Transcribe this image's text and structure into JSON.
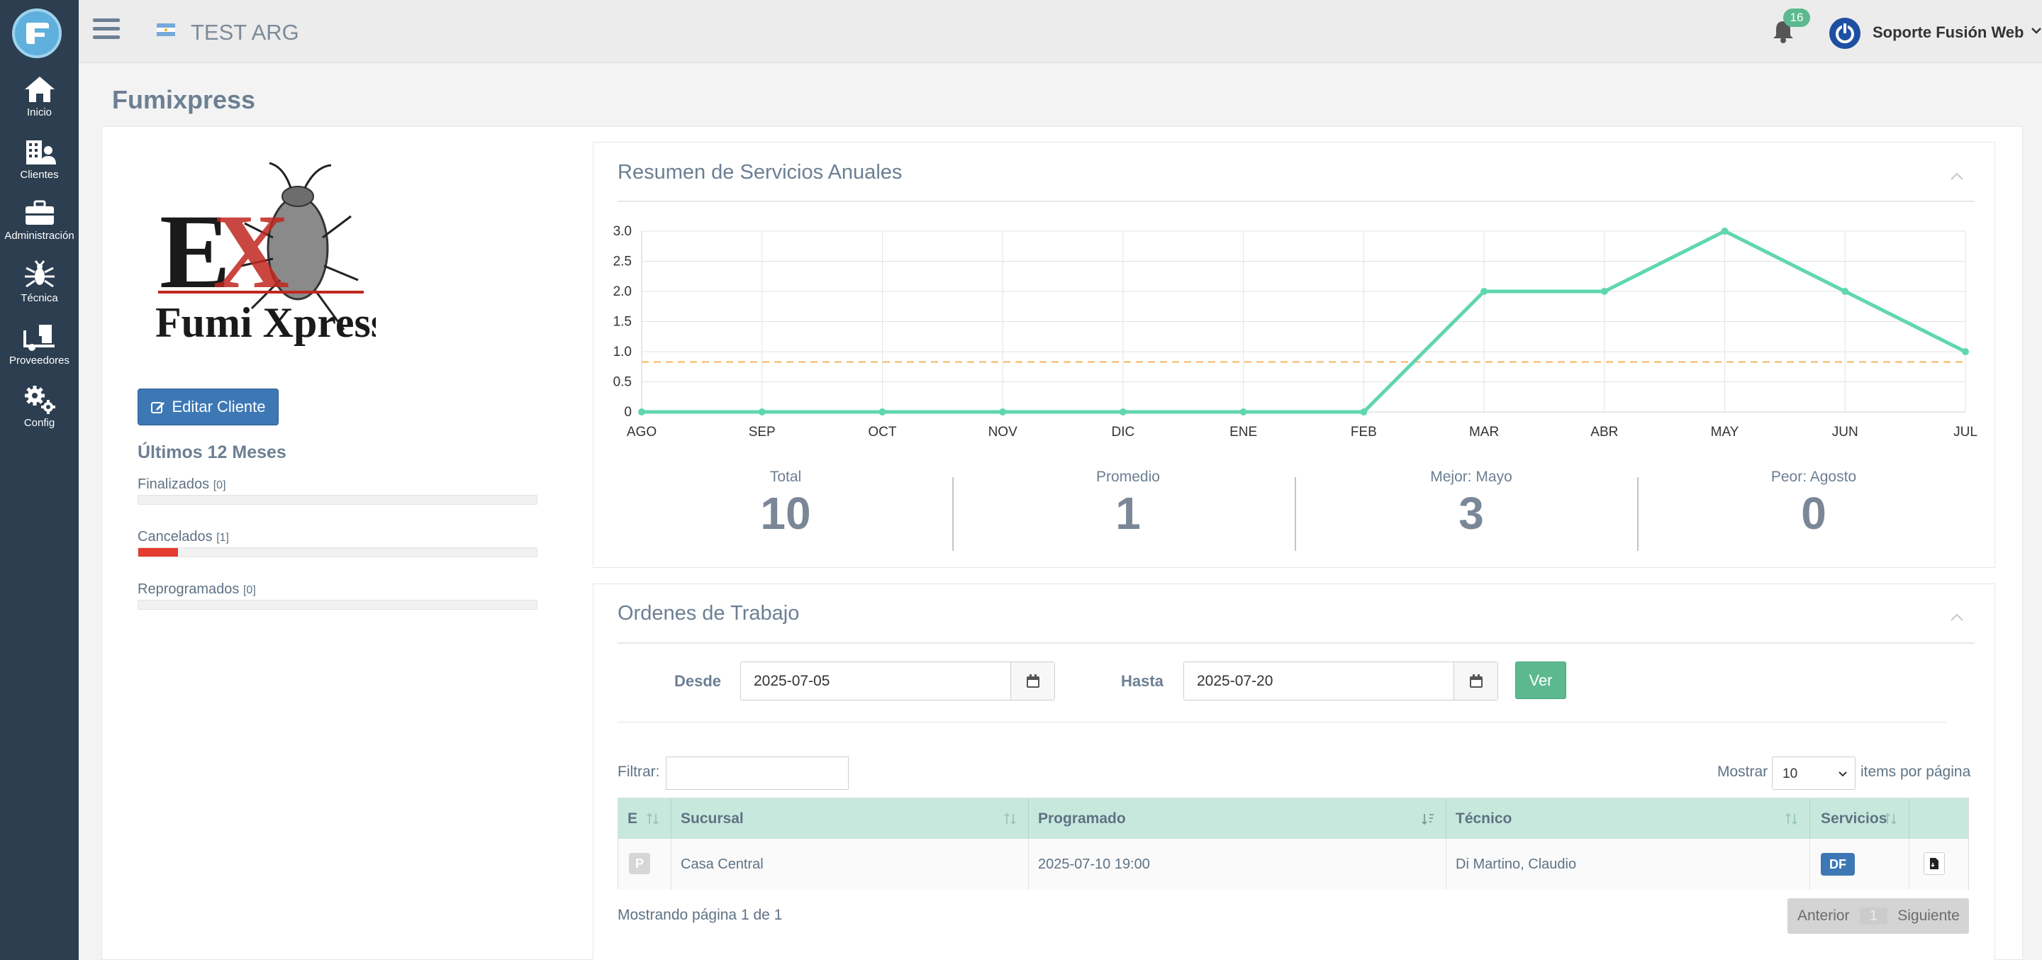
{
  "topbar": {
    "title": "TEST ARG",
    "notifications_count": "16",
    "user_name": "Soporte Fusión Web"
  },
  "sidebar": {
    "items": [
      {
        "label": "Inicio",
        "icon": "home-icon"
      },
      {
        "label": "Clientes",
        "icon": "clients-icon"
      },
      {
        "label": "Administración",
        "icon": "briefcase-icon"
      },
      {
        "label": "Técnica",
        "icon": "insect-icon"
      },
      {
        "label": "Proveedores",
        "icon": "truck-icon"
      },
      {
        "label": "Config",
        "icon": "gears-icon"
      }
    ]
  },
  "page": {
    "title": "Fumixpress"
  },
  "client": {
    "logo_text_big": "EX",
    "logo_text": "Fumi Xpress",
    "edit_button": "Editar Cliente",
    "last12_title": "Últimos 12 Meses",
    "stats": [
      {
        "label": "Finalizados",
        "count": "[0]",
        "fraction": 0
      },
      {
        "label": "Cancelados",
        "count": "[1]",
        "fraction": 0.1
      },
      {
        "label": "Reprogramados",
        "count": "[0]",
        "fraction": 0
      }
    ]
  },
  "annual": {
    "title": "Resumen de Servicios Anuales",
    "summary": [
      {
        "label": "Total",
        "value": "10"
      },
      {
        "label": "Promedio",
        "value": "1"
      },
      {
        "label": "Mejor: Mayo",
        "value": "3"
      },
      {
        "label": "Peor: Agosto",
        "value": "0"
      }
    ]
  },
  "chart_data": {
    "type": "line",
    "categories": [
      "AGO",
      "SEP",
      "OCT",
      "NOV",
      "DIC",
      "ENE",
      "FEB",
      "MAR",
      "ABR",
      "MAY",
      "JUN",
      "JUL"
    ],
    "series": [
      {
        "values": [
          0,
          0,
          0,
          0,
          0,
          0,
          0,
          2,
          2,
          3,
          2,
          1
        ],
        "color": "#5fd6b0"
      }
    ],
    "average_line": 0.83,
    "average_color": "#f5b461",
    "ylim": [
      0,
      3
    ],
    "yticks": [
      "0",
      "0.5",
      "1.0",
      "1.5",
      "2.0",
      "2.5",
      "3.0"
    ],
    "grid": true
  },
  "orders": {
    "title": "Ordenes de Trabajo",
    "desde_label": "Desde",
    "desde_value": "2025-07-05",
    "hasta_label": "Hasta",
    "hasta_value": "2025-07-20",
    "ver_button": "Ver",
    "filter_label": "Filtrar:",
    "filter_value": "",
    "show_label": "Mostrar",
    "per_page": "10",
    "per_page_suffix": "items por página",
    "columns": [
      "E",
      "Sucursal",
      "Programado",
      "Técnico",
      "Servicios"
    ],
    "rows": [
      {
        "estado": "P",
        "sucursal": "Casa Central",
        "programado": "2025-07-10 19:00",
        "tecnico": "Di Martino, Claudio",
        "servicio": "DF"
      }
    ],
    "footer_text": "Mostrando página 1 de 1",
    "pager": {
      "prev": "Anterior",
      "current": "1",
      "next": "Siguiente"
    }
  }
}
